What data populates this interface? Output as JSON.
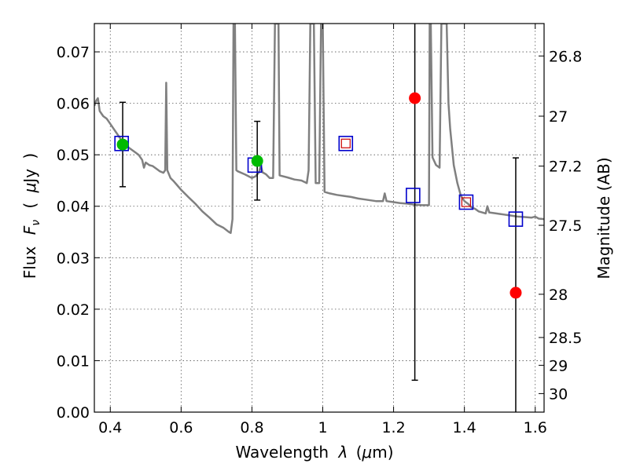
{
  "chart_data": {
    "type": "scatter",
    "title": "",
    "xlabel_text": "Wavelength",
    "xlabel_math": "λ",
    "xlabel_unit_open": "(",
    "xlabel_unit_mu": "μ",
    "xlabel_unit_rest": "m)",
    "ylabel_text": "Flux",
    "ylabel_math": "F",
    "ylabel_sub": "ν",
    "ylabel_unit_open": "(",
    "ylabel_unit_mu": "μ",
    "ylabel_unit_rest": "Jy",
    "ylabel_unit_close": ")",
    "y2label": "Magnitude (AB)",
    "xlim": [
      0.355,
      1.625
    ],
    "ylim": [
      0.0,
      0.0755
    ],
    "grid": true,
    "x_ticks": [
      0.4,
      0.6,
      0.8,
      1.0,
      1.2,
      1.4,
      1.6
    ],
    "x_tick_labels": [
      "0.4",
      "0.6",
      "0.8",
      "1",
      "1.2",
      "1.4",
      "1.6"
    ],
    "y_ticks": [
      0.0,
      0.01,
      0.02,
      0.03,
      0.04,
      0.05,
      0.06,
      0.07
    ],
    "y_tick_labels": [
      "0.00",
      "0.01",
      "0.02",
      "0.03",
      "0.04",
      "0.05",
      "0.06",
      "0.07"
    ],
    "y2_ticks": [
      {
        "label": "26.8",
        "flux": 0.0692
      },
      {
        "label": "27",
        "flux": 0.0575
      },
      {
        "label": "27.2",
        "flux": 0.0478
      },
      {
        "label": "27.5",
        "flux": 0.0363
      },
      {
        "label": "28",
        "flux": 0.0229
      },
      {
        "label": "28.5",
        "flux": 0.0145
      },
      {
        "label": "29",
        "flux": 0.0091
      },
      {
        "label": "30",
        "flux": 0.0036
      }
    ],
    "series": [
      {
        "kind": "spectrum",
        "color": "#808080",
        "points": [
          [
            0.355,
            0.0595
          ],
          [
            0.36,
            0.0605
          ],
          [
            0.365,
            0.061
          ],
          [
            0.37,
            0.0585
          ],
          [
            0.38,
            0.0575
          ],
          [
            0.39,
            0.057
          ],
          [
            0.4,
            0.056
          ],
          [
            0.41,
            0.055
          ],
          [
            0.42,
            0.054
          ],
          [
            0.43,
            0.053
          ],
          [
            0.44,
            0.052
          ],
          [
            0.45,
            0.0515
          ],
          [
            0.46,
            0.051
          ],
          [
            0.47,
            0.0505
          ],
          [
            0.48,
            0.05
          ],
          [
            0.49,
            0.049
          ],
          [
            0.495,
            0.0475
          ],
          [
            0.5,
            0.0485
          ],
          [
            0.51,
            0.048
          ],
          [
            0.52,
            0.0478
          ],
          [
            0.53,
            0.0473
          ],
          [
            0.54,
            0.0468
          ],
          [
            0.55,
            0.0465
          ],
          [
            0.555,
            0.047
          ],
          [
            0.558,
            0.064
          ],
          [
            0.561,
            0.047
          ],
          [
            0.57,
            0.0455
          ],
          [
            0.58,
            0.0448
          ],
          [
            0.59,
            0.044
          ],
          [
            0.6,
            0.0432
          ],
          [
            0.62,
            0.0418
          ],
          [
            0.64,
            0.0405
          ],
          [
            0.66,
            0.039
          ],
          [
            0.68,
            0.0378
          ],
          [
            0.7,
            0.0365
          ],
          [
            0.72,
            0.0358
          ],
          [
            0.735,
            0.035
          ],
          [
            0.74,
            0.0348
          ],
          [
            0.745,
            0.0375
          ],
          [
            0.748,
            0.0755
          ],
          [
            0.752,
            0.0755
          ],
          [
            0.756,
            0.047
          ],
          [
            0.76,
            0.0468
          ],
          [
            0.78,
            0.0462
          ],
          [
            0.8,
            0.0455
          ],
          [
            0.81,
            0.0458
          ],
          [
            0.82,
            0.0466
          ],
          [
            0.825,
            0.048
          ],
          [
            0.83,
            0.0466
          ],
          [
            0.84,
            0.0462
          ],
          [
            0.85,
            0.0455
          ],
          [
            0.86,
            0.0455
          ],
          [
            0.865,
            0.0755
          ],
          [
            0.875,
            0.0755
          ],
          [
            0.878,
            0.046
          ],
          [
            0.9,
            0.0456
          ],
          [
            0.92,
            0.0452
          ],
          [
            0.94,
            0.045
          ],
          [
            0.955,
            0.0445
          ],
          [
            0.96,
            0.047
          ],
          [
            0.965,
            0.0755
          ],
          [
            0.975,
            0.0755
          ],
          [
            0.98,
            0.0445
          ],
          [
            0.99,
            0.0445
          ],
          [
            0.995,
            0.0755
          ],
          [
            1.0,
            0.0755
          ],
          [
            1.005,
            0.0428
          ],
          [
            1.02,
            0.0425
          ],
          [
            1.04,
            0.0422
          ],
          [
            1.06,
            0.042
          ],
          [
            1.08,
            0.0418
          ],
          [
            1.1,
            0.0415
          ],
          [
            1.12,
            0.0413
          ],
          [
            1.15,
            0.041
          ],
          [
            1.17,
            0.041
          ],
          [
            1.175,
            0.0425
          ],
          [
            1.18,
            0.041
          ],
          [
            1.2,
            0.0408
          ],
          [
            1.22,
            0.0406
          ],
          [
            1.24,
            0.0405
          ],
          [
            1.26,
            0.0403
          ],
          [
            1.28,
            0.0402
          ],
          [
            1.3,
            0.0402
          ],
          [
            1.302,
            0.0755
          ],
          [
            1.305,
            0.0755
          ],
          [
            1.31,
            0.0495
          ],
          [
            1.32,
            0.048
          ],
          [
            1.33,
            0.0475
          ],
          [
            1.335,
            0.0755
          ],
          [
            1.35,
            0.0755
          ],
          [
            1.355,
            0.06
          ],
          [
            1.36,
            0.055
          ],
          [
            1.37,
            0.048
          ],
          [
            1.38,
            0.0445
          ],
          [
            1.39,
            0.042
          ],
          [
            1.4,
            0.041
          ],
          [
            1.41,
            0.0405
          ],
          [
            1.42,
            0.0398
          ],
          [
            1.43,
            0.0395
          ],
          [
            1.44,
            0.039
          ],
          [
            1.45,
            0.0388
          ],
          [
            1.46,
            0.0386
          ],
          [
            1.465,
            0.04
          ],
          [
            1.47,
            0.0388
          ],
          [
            1.49,
            0.0386
          ],
          [
            1.51,
            0.0384
          ],
          [
            1.53,
            0.0382
          ],
          [
            1.55,
            0.038
          ],
          [
            1.57,
            0.0379
          ],
          [
            1.59,
            0.0378
          ],
          [
            1.6,
            0.038
          ],
          [
            1.61,
            0.0376
          ],
          [
            1.625,
            0.0375
          ]
        ]
      },
      {
        "kind": "green-points",
        "color": "#00bb00",
        "points": [
          {
            "x": 0.435,
            "y": 0.052,
            "yerr_low": 0.0438,
            "yerr_high": 0.0602
          },
          {
            "x": 0.815,
            "y": 0.0488,
            "yerr_low": 0.0412,
            "yerr_high": 0.0565
          }
        ]
      },
      {
        "kind": "blue-open-squares",
        "color": "#0000cc",
        "points": [
          {
            "x": 0.432,
            "y": 0.0522
          },
          {
            "x": 0.808,
            "y": 0.048
          },
          {
            "x": 1.065,
            "y": 0.0522
          },
          {
            "x": 1.255,
            "y": 0.0421
          },
          {
            "x": 1.405,
            "y": 0.0408
          },
          {
            "x": 1.545,
            "y": 0.0375
          }
        ]
      },
      {
        "kind": "red-open-squares",
        "color": "#cc0000",
        "points": [
          {
            "x": 1.065,
            "y": 0.0522
          },
          {
            "x": 1.405,
            "y": 0.0408
          }
        ]
      },
      {
        "kind": "red-points",
        "color": "#ff0000",
        "points": [
          {
            "x": 1.26,
            "y": 0.061,
            "yerr_low": 0.0062,
            "yerr_high": 0.0755
          },
          {
            "x": 1.545,
            "y": 0.0232,
            "yerr_low": 0.0,
            "yerr_high": 0.0494
          }
        ]
      }
    ]
  }
}
